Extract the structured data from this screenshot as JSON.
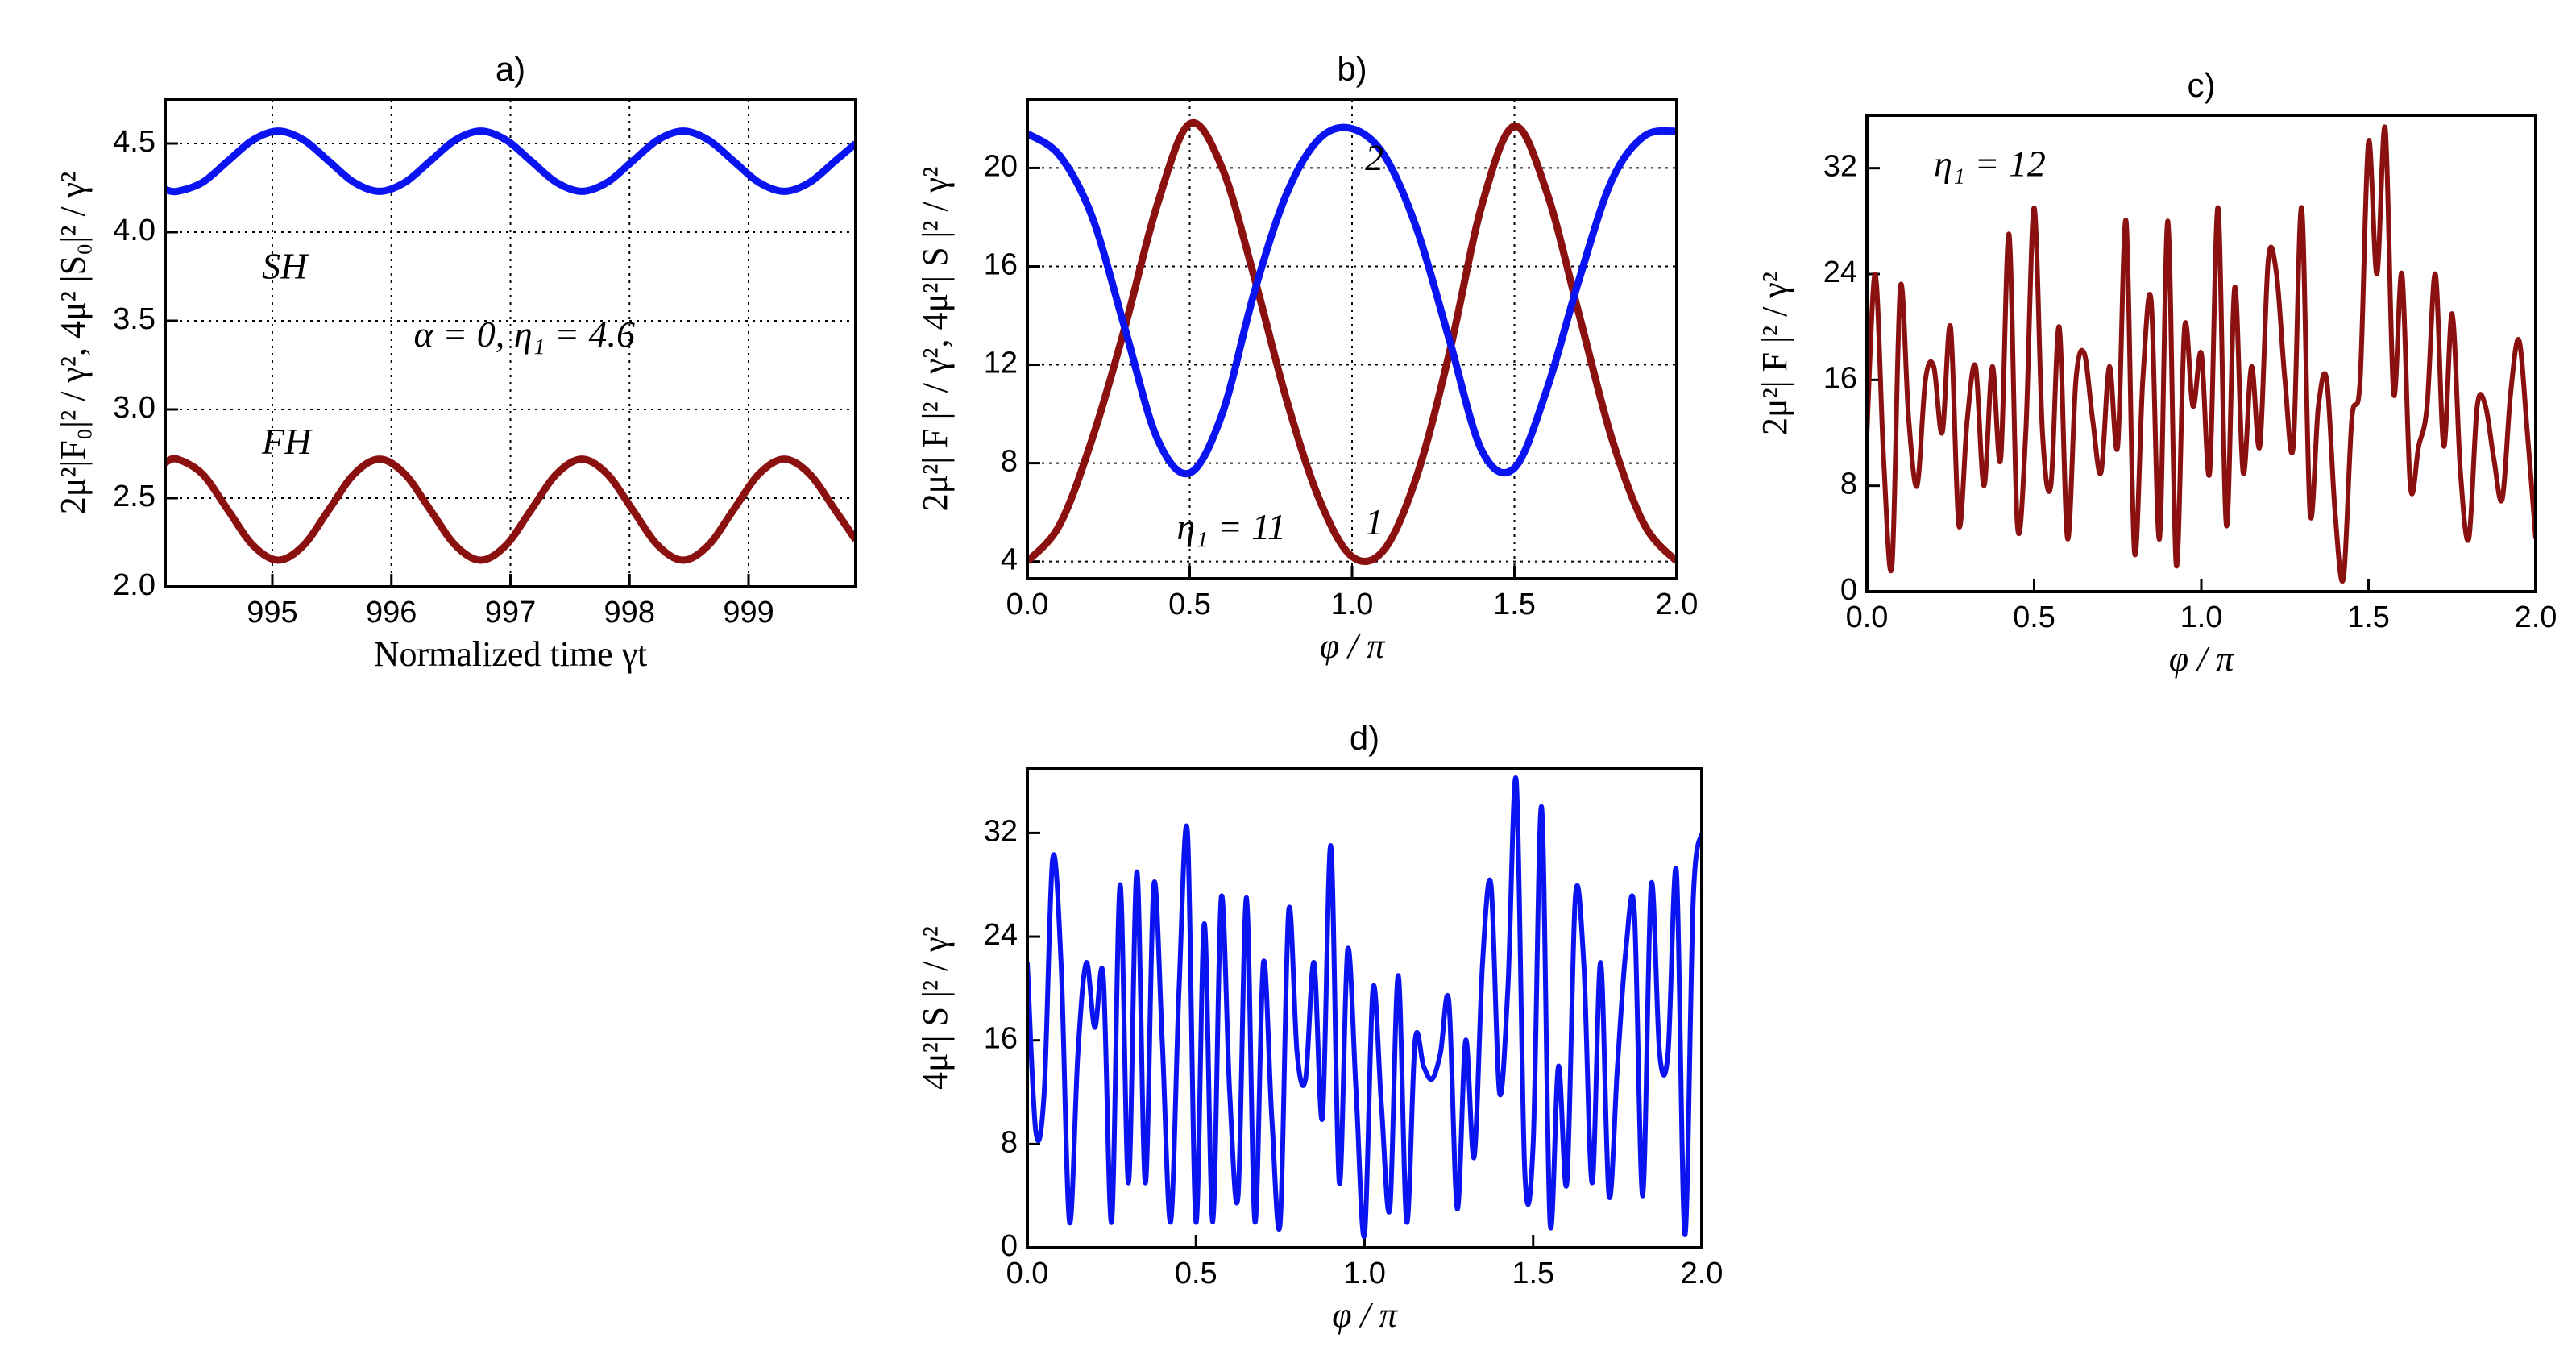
{
  "chart_data": [
    {
      "type": "line",
      "title": "a)",
      "xlabel": "Normalized time γt",
      "ylabel": "2μ²|F₀|² / γ²,  4μ² |S₀|² / γ²",
      "x": [
        994.1,
        994.2,
        994.4125,
        994.625,
        994.8375,
        995.05,
        995.2625,
        995.475,
        995.6875,
        995.9,
        996.1125,
        996.325,
        996.5375,
        996.75,
        996.9625,
        997.175,
        997.3875,
        997.6,
        997.8125,
        998.025,
        998.2375,
        998.45,
        998.6625,
        998.875,
        999.0875,
        999.3,
        999.5125,
        999.725,
        999.9
      ],
      "series": [
        {
          "name": "SH",
          "color": "#0a14f0",
          "values": [
            4.24,
            4.23,
            4.28,
            4.4,
            4.52,
            4.57,
            4.52,
            4.4,
            4.28,
            4.23,
            4.28,
            4.4,
            4.52,
            4.57,
            4.52,
            4.4,
            4.28,
            4.23,
            4.28,
            4.4,
            4.52,
            4.57,
            4.52,
            4.4,
            4.28,
            4.23,
            4.28,
            4.4,
            4.5
          ]
        },
        {
          "name": "FH",
          "color": "#8b1010",
          "values": [
            2.7,
            2.72,
            2.636,
            2.435,
            2.234,
            2.15,
            2.234,
            2.435,
            2.636,
            2.72,
            2.636,
            2.435,
            2.234,
            2.15,
            2.234,
            2.435,
            2.636,
            2.72,
            2.636,
            2.435,
            2.234,
            2.15,
            2.234,
            2.435,
            2.636,
            2.72,
            2.636,
            2.435,
            2.264
          ]
        }
      ],
      "xlim": [
        994.1,
        999.9
      ],
      "xticks": [
        995,
        996,
        997,
        998,
        999
      ],
      "ylim": [
        2.0,
        4.75
      ],
      "yticks": [
        {
          "value": 2,
          "label": "2.0"
        },
        2.5,
        {
          "value": 3,
          "label": "3.0"
        },
        3.5,
        {
          "value": 4,
          "label": "4.0"
        },
        4.5
      ],
      "grid": true,
      "annotations": [
        {
          "text": "SH"
        },
        {
          "text": "FH"
        },
        {
          "text": "α = 0,  η₁ = 4.6"
        }
      ]
    },
    {
      "type": "line",
      "title": "b)",
      "xlabel": "φ / π",
      "ylabel": "2μ²| F |² / γ²,  4μ²| S |² / γ²",
      "x": [
        0,
        0.1,
        0.2,
        0.3,
        0.4,
        0.5,
        0.6,
        0.7,
        0.8,
        0.9,
        1.0,
        1.1,
        1.2,
        1.3,
        1.4,
        1.5,
        1.6,
        1.7,
        1.8,
        1.9,
        2.0
      ],
      "series": [
        {
          "name": "1",
          "color": "#8b1010",
          "values": [
            4.0,
            5.5,
            9,
            13.5,
            18.5,
            21.8,
            20,
            15.5,
            10.5,
            6.5,
            4.2,
            4.5,
            7.5,
            12.5,
            18.5,
            21.7,
            19,
            14,
            9,
            5.5,
            4.0
          ]
        },
        {
          "name": "2",
          "color": "#0a14f0",
          "values": [
            21.4,
            20.5,
            18,
            13.5,
            9,
            7.6,
            10,
            15,
            19,
            21.2,
            21.6,
            20.5,
            17.5,
            13,
            8.5,
            7.8,
            11,
            15.5,
            19.5,
            21.3,
            21.5
          ]
        }
      ],
      "xlim": [
        0,
        2
      ],
      "xticks": [
        {
          "value": 0,
          "label": "0.0"
        },
        0.5,
        {
          "value": 1,
          "label": "1.0"
        },
        1.5,
        {
          "value": 2,
          "label": "2.0"
        }
      ],
      "ylim": [
        3.3,
        22.8
      ],
      "yticks": [
        4,
        8,
        12,
        16,
        20
      ],
      "grid": true,
      "annotations": [
        {
          "text": "2",
          "color": "#0a14f0"
        },
        {
          "text": "1",
          "color": "#8b1010"
        },
        {
          "text": "η₁ = 11"
        }
      ]
    },
    {
      "type": "line",
      "title": "c)",
      "xlabel": "φ / π",
      "ylabel": "2μ²| F |² / γ²",
      "x": [
        0,
        0.025,
        0.05,
        0.075,
        0.1,
        0.125,
        0.15,
        0.175,
        0.2,
        0.225,
        0.25,
        0.275,
        0.3,
        0.325,
        0.35,
        0.375,
        0.4,
        0.425,
        0.45,
        0.475,
        0.5,
        0.525,
        0.55,
        0.575,
        0.6,
        0.625,
        0.65,
        0.675,
        0.7,
        0.725,
        0.75,
        0.775,
        0.8,
        0.825,
        0.85,
        0.875,
        0.9,
        0.925,
        0.95,
        0.975,
        1.0,
        1.025,
        1.05,
        1.075,
        1.1,
        1.125,
        1.15,
        1.175,
        1.2,
        1.225,
        1.25,
        1.275,
        1.3,
        1.325,
        1.35,
        1.375,
        1.4,
        1.425,
        1.45,
        1.475,
        1.5,
        1.525,
        1.55,
        1.575,
        1.6,
        1.625,
        1.65,
        1.675,
        1.7,
        1.725,
        1.75,
        1.775,
        1.8,
        1.825,
        1.85,
        1.875,
        1.9,
        1.925,
        1.95,
        1.975,
        2.0
      ],
      "series": [
        {
          "name": "F",
          "color": "#8b1010",
          "values": [
            12,
            24,
            10,
            2,
            23,
            13,
            8,
            16,
            17,
            12,
            20,
            5,
            13,
            17,
            8,
            17,
            10,
            27,
            5,
            12,
            29,
            12,
            8,
            20,
            4,
            16,
            18,
            13,
            9,
            17,
            11,
            28,
            3,
            16,
            22,
            4,
            28,
            2,
            20,
            14,
            18,
            9,
            29,
            5,
            23,
            9,
            17,
            11,
            25,
            24,
            16,
            11,
            29,
            6,
            14,
            16,
            6,
            1,
            13,
            16,
            34,
            24,
            35,
            15,
            24,
            8,
            11,
            14,
            24,
            11,
            21,
            9,
            4,
            14,
            14,
            10,
            7,
            15,
            19,
            12,
            4
          ]
        }
      ],
      "xlim": [
        0,
        2
      ],
      "xticks": [
        {
          "value": 0,
          "label": "0.0"
        },
        0.5,
        {
          "value": 1,
          "label": "1.0"
        },
        1.5,
        {
          "value": 2,
          "label": "2.0"
        }
      ],
      "ylim": [
        0,
        36
      ],
      "yticks": [
        0,
        8,
        16,
        24,
        32
      ],
      "grid": false,
      "annotations": [
        {
          "text": "η₁ = 12"
        }
      ]
    },
    {
      "type": "line",
      "title": "d)",
      "xlabel": "φ / π",
      "ylabel": "4μ²| S |² / γ²",
      "x": [
        0,
        0.025,
        0.05,
        0.075,
        0.1,
        0.125,
        0.15,
        0.175,
        0.2,
        0.225,
        0.25,
        0.275,
        0.3,
        0.325,
        0.35,
        0.375,
        0.4,
        0.425,
        0.45,
        0.475,
        0.5,
        0.525,
        0.55,
        0.575,
        0.6,
        0.625,
        0.65,
        0.675,
        0.7,
        0.725,
        0.75,
        0.775,
        0.8,
        0.825,
        0.85,
        0.875,
        0.9,
        0.925,
        0.95,
        0.975,
        1.0,
        1.025,
        1.05,
        1.075,
        1.1,
        1.125,
        1.15,
        1.175,
        1.2,
        1.225,
        1.25,
        1.275,
        1.3,
        1.325,
        1.35,
        1.375,
        1.4,
        1.425,
        1.45,
        1.475,
        1.5,
        1.525,
        1.55,
        1.575,
        1.6,
        1.625,
        1.65,
        1.675,
        1.7,
        1.725,
        1.75,
        1.775,
        1.8,
        1.825,
        1.85,
        1.875,
        1.9,
        1.925,
        1.95,
        1.975,
        2.0
      ],
      "series": [
        {
          "name": "S",
          "color": "#0a14f0",
          "values": [
            22,
            9,
            12,
            30,
            22,
            2,
            15,
            22,
            17,
            21,
            2,
            28,
            5,
            29,
            5,
            28,
            16,
            2,
            20,
            32,
            2,
            25,
            2,
            27,
            12,
            4,
            27,
            2,
            22,
            10,
            2,
            26,
            15,
            13,
            22,
            10,
            31,
            5,
            23,
            12,
            1,
            20,
            11,
            3,
            21,
            2,
            16,
            14,
            13,
            15,
            19,
            3,
            16,
            7,
            22,
            28,
            12,
            20,
            36,
            6,
            8,
            34,
            2,
            14,
            5,
            27,
            22,
            5,
            22,
            4,
            14,
            23,
            26,
            4,
            28,
            15,
            15,
            29,
            1,
            27,
            32
          ]
        }
      ],
      "xlim": [
        0,
        2
      ],
      "xticks": [
        {
          "value": 0,
          "label": "0.0"
        },
        0.5,
        {
          "value": 1,
          "label": "1.0"
        },
        1.5,
        {
          "value": 2,
          "label": "2.0"
        }
      ],
      "ylim": [
        0,
        37
      ],
      "yticks": [
        0,
        8,
        16,
        24,
        32
      ],
      "grid": false,
      "annotations": []
    }
  ]
}
